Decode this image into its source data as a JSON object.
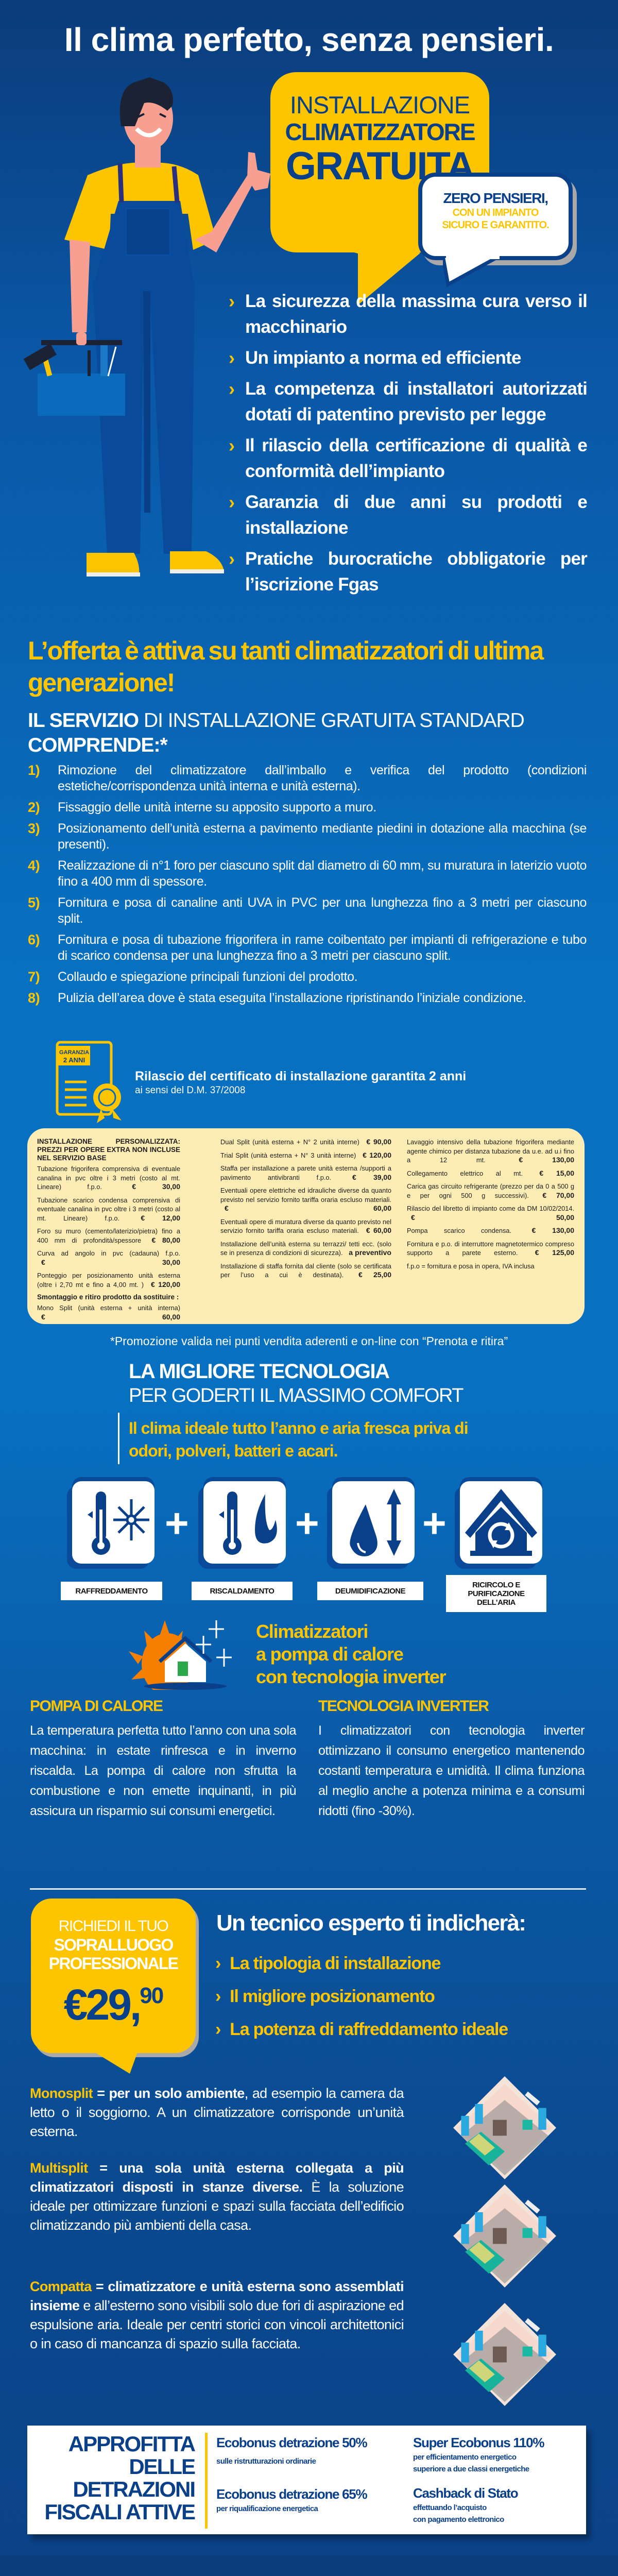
{
  "colors": {
    "accent_yellow": "#fdc500",
    "navy": "#0a3f8a",
    "background_blue": "#0870c0",
    "table_cream": "#fdedb5"
  },
  "hero": {
    "title": "Il clima perfetto, senza pensieri.",
    "bubble": {
      "line1": "INSTALLAZIONE",
      "line2": "CLIMATIZZATORE",
      "line3": "GRATUITA"
    },
    "badge": {
      "line1": "ZERO PENSIERI,",
      "line2": "CON UN IMPIANTO",
      "line3": "SICURO E GARANTITO."
    }
  },
  "benefits": [
    "La sicurezza della massima cura verso il macchinario",
    "Un impianto a norma ed efficiente",
    "La competenza di installatori autorizzati dotati di patentino previsto per legge",
    "Il rilascio della certificazione di qualità e conformità dell’impianto",
    "Garanzia di due anni su prodotti e installazione",
    "Pratiche burocratiche obbligatorie per l’iscrizione Fgas"
  ],
  "offer_headline": "L’offerta è attiva su tanti climatizzatori di ultima generazione!",
  "service": {
    "heading_bold": "IL SERVIZIO",
    "heading_regular": " DI INSTALLAZIONE GRATUITA STANDARD ",
    "heading_bold2": "COMPRENDE:*",
    "items": [
      {
        "num": "1)",
        "text": "Rimozione del climatizzatore dall’imballo e verifica del prodotto (condizioni estetiche/corrispondenza unità interna e unità esterna)."
      },
      {
        "num": "2)",
        "text": "Fissaggio delle unità interne su apposito supporto a muro."
      },
      {
        "num": "3)",
        "text": "Posizionamento dell’unità esterna a pavimento mediante piedini in dotazione alla macchina (se presenti)."
      },
      {
        "num": "4)",
        "text": "Realizzazione di n°1 foro per ciascuno split dal diametro di 60 mm, su muratura in laterizio vuoto fino a 400 mm di spessore."
      },
      {
        "num": "5)",
        "text": "Fornitura e posa di canaline anti UVA in PVC per una lunghezza fino a 3 metri per ciascuno split."
      },
      {
        "num": "6)",
        "text": "Fornitura e posa di tubazione frigorifera in rame coibentato per impianti di refrigerazione e tubo di scarico condensa per una lunghezza fino a 3 metri per ciascuno split."
      },
      {
        "num": "7)",
        "text": "Collaudo e spiegazione principali funzioni del prodotto."
      },
      {
        "num": "8)",
        "text": "Pulizia dell’area dove è stata eseguita l’installazione ripristinando l’iniziale condizione."
      }
    ]
  },
  "certificate": {
    "badge_line1": "GARANZIA",
    "badge_line2": "2 ANNI",
    "title": "Rilascio del certificato di installazione garantita 2 anni",
    "subtitle": "ai sensi del D.M. 37/2008"
  },
  "price_table": {
    "header": "INSTALLAZIONE PERSONALIZZATA: PREZZI PER OPERE EXTRA NON INCLUSE NEL SERVIZIO BASE",
    "col1": [
      {
        "text": "Tubazione frigorifera comprensiva di eventuale canalina in pvc oltre i 3 metri (costo al mt. Lineare) f.p.o.",
        "price": "€ 30,00"
      },
      {
        "text": "Tubazione scarico condensa comprensiva di eventuale canalina in pvc oltre i 3 metri (costo al mt. Lineare) f.p.o.",
        "price": "€ 12,00"
      },
      {
        "text": "Foro su muro (cemento/laterizio/pietra) fino a 400 mm di profondità/spessore",
        "price": "€ 80,00"
      },
      {
        "text": "Curva ad angolo in pvc (cadauna) f.p.o.",
        "price": "€ 30,00"
      },
      {
        "text": "Ponteggio per posizionamento unità esterna (oltre i 2,70 mt e fino a 4,00 mt. )",
        "price": "€ 120,00"
      }
    ],
    "removal_heading": "Smontaggio e ritiro prodotto da sostituire :",
    "removal": {
      "text": "Mono Split (unità esterna + unità interna)",
      "price": "€ 60,00"
    },
    "col2": [
      {
        "text": "Dual Split (unità esterna + N° 2 unità interne)",
        "price": "€ 90,00"
      },
      {
        "text": "Trial Split (unità esterna + N° 3 unità interne)",
        "price": "€ 120,00"
      },
      {
        "text": "Staffa per installazione a parete unità esterna /supporti a pavimento antivibranti f.p.o.",
        "price": "€ 39,00"
      },
      {
        "text": "Eventuali opere elettriche ed idrauliche diverse da quanto previsto nel servizio fornito tariffa oraria escluso materiali.",
        "price": "€ 60,00"
      },
      {
        "text": "Eventuali opere di muratura diverse da quanto previsto nel servizio fornito tariffa oraria escluso materiali.",
        "price": "€ 60,00"
      },
      {
        "text": "Installazione dell’unità esterna su terrazzi/ tetti ecc. (solo se in presenza di condizioni di sicurezza).",
        "price": "a preventivo"
      },
      {
        "text": "Installazione di staffa fornita dal cliente (solo se certificata per l’uso a cui è destinata).",
        "price": "€ 25,00"
      }
    ],
    "col3": [
      {
        "text": "Lavaggio intensivo della tubazione frigorifera mediante agente chimico per distanza tubazione da u.e. ad u.i fino a 12 mt.",
        "price": "€ 130,00"
      },
      {
        "text": "Collegamento elettrico al mt.",
        "price": "€ 15,00"
      },
      {
        "text": "Carica gas circuito refrigerante (prezzo per da 0 a 500 g e per ogni 500 g successivi).",
        "price": "€ 70,00"
      },
      {
        "text": "Rilascio del libretto di impianto come da DM 10/02/2014.",
        "price": "€ 50,00"
      },
      {
        "text": "Pompa scarico condensa.",
        "price": "€ 130,00"
      },
      {
        "text": "Fornitura e p.o. di interruttore magnetotermico compreso supporto a parete esterno.",
        "price": "€ 125,00"
      }
    ],
    "note": "f.p.o = fornitura e posa in opera, IVA inclusa"
  },
  "promo_note": "*Promozione valida nei punti vendita aderenti e on-line con “Prenota e ritira”",
  "technology": {
    "title": "LA MIGLIORE TECNOLOGIA",
    "subtitle": "PER GODERTI IL MASSIMO COMFORT",
    "claim": "Il clima ideale tutto l’anno e aria fresca priva di odori, polveri, batteri e acari.",
    "features": [
      {
        "icon": "thermometer-snowflake-icon",
        "label": "RAFFREDDAMENTO"
      },
      {
        "icon": "thermometer-flame-icon",
        "label": "RISCALDAMENTO"
      },
      {
        "icon": "water-drop-arrows-icon",
        "label": "DEUMIDIFICAZIONE"
      },
      {
        "icon": "house-recycle-icon",
        "label": "RICIRCOLO E PURIFICAZIONE DELL’ARIA"
      }
    ]
  },
  "heat_pump": {
    "title_lines": [
      "Climatizzatori",
      "a pompa di calore",
      "con tecnologia inverter"
    ],
    "col1_title": "POMPA DI CALORE",
    "col1_text": "La temperatura perfetta tutto l’anno con una sola macchina: in estate rinfresca e in inverno riscalda. La pompa di calore non sfrutta la combustione e non emette inquinanti, in più assicura un risparmio sui consumi energetici.",
    "col2_title": "TECNOLOGIA INVERTER",
    "col2_text": "I climatizzatori con tecnologia inverter ottimizzano il consumo energetico mantenendo costanti temperatura e umidità. Il clima funziona al meglio anche a potenza minima e a consumi ridotti (fino -30%)."
  },
  "survey": {
    "line1": "RICHIEDI IL TUO",
    "line2": "SOPRALLUOGO",
    "line3": "PROFESSIONALE",
    "price_main": "€29,",
    "price_cents": "90",
    "title": "Un tecnico esperto ti indicherà:",
    "items": [
      "La tipologia di installazione",
      "Il migliore posizionamento",
      "La potenza di raffreddamento ideale"
    ]
  },
  "splits": [
    {
      "key": "Monosplit",
      "bold": " = per un solo ambiente",
      "rest": ", ad esempio la camera da letto o il soggiorno. A un climatizzatore corrisponde un’unità esterna."
    },
    {
      "key": "Multisplit",
      "bold": " = una sola unità esterna collegata a più climatizzatori disposti in stanze diverse.",
      "rest": " È la soluzione ideale per ottimizzare funzioni e spazi sulla facciata dell’edificio climatizzando più ambienti della casa."
    },
    {
      "key": "Compatta",
      "bold": " = climatizzatore e unità esterna sono assemblati insieme",
      "rest": " e all’esterno sono visibili solo due fori di aspirazione ed espulsione aria. Ideale per centri storici con vincoli architettonici o in caso di mancanza di spazio sulla facciata."
    }
  ],
  "tax": {
    "heading_lines": [
      "APPROFITTA",
      "DELLE",
      "DETRAZIONI",
      "FISCALI ATTIVE"
    ],
    "eco50_title": "Ecobonus detrazione 50%",
    "eco50_sub": "sulle ristrutturazioni ordinarie",
    "eco65_title": "Ecobonus detrazione 65%",
    "eco65_sub": "per riqualificazione energetica",
    "super_title": "Super Ecobonus 110%",
    "super_sub1": "per efficientamento energetico",
    "super_sub2": "superiore a due classi energetiche",
    "cash_title": "Cashback di Stato",
    "cash_sub1": "effettuando l’acquisto",
    "cash_sub2": "con pagamento elettronico"
  }
}
